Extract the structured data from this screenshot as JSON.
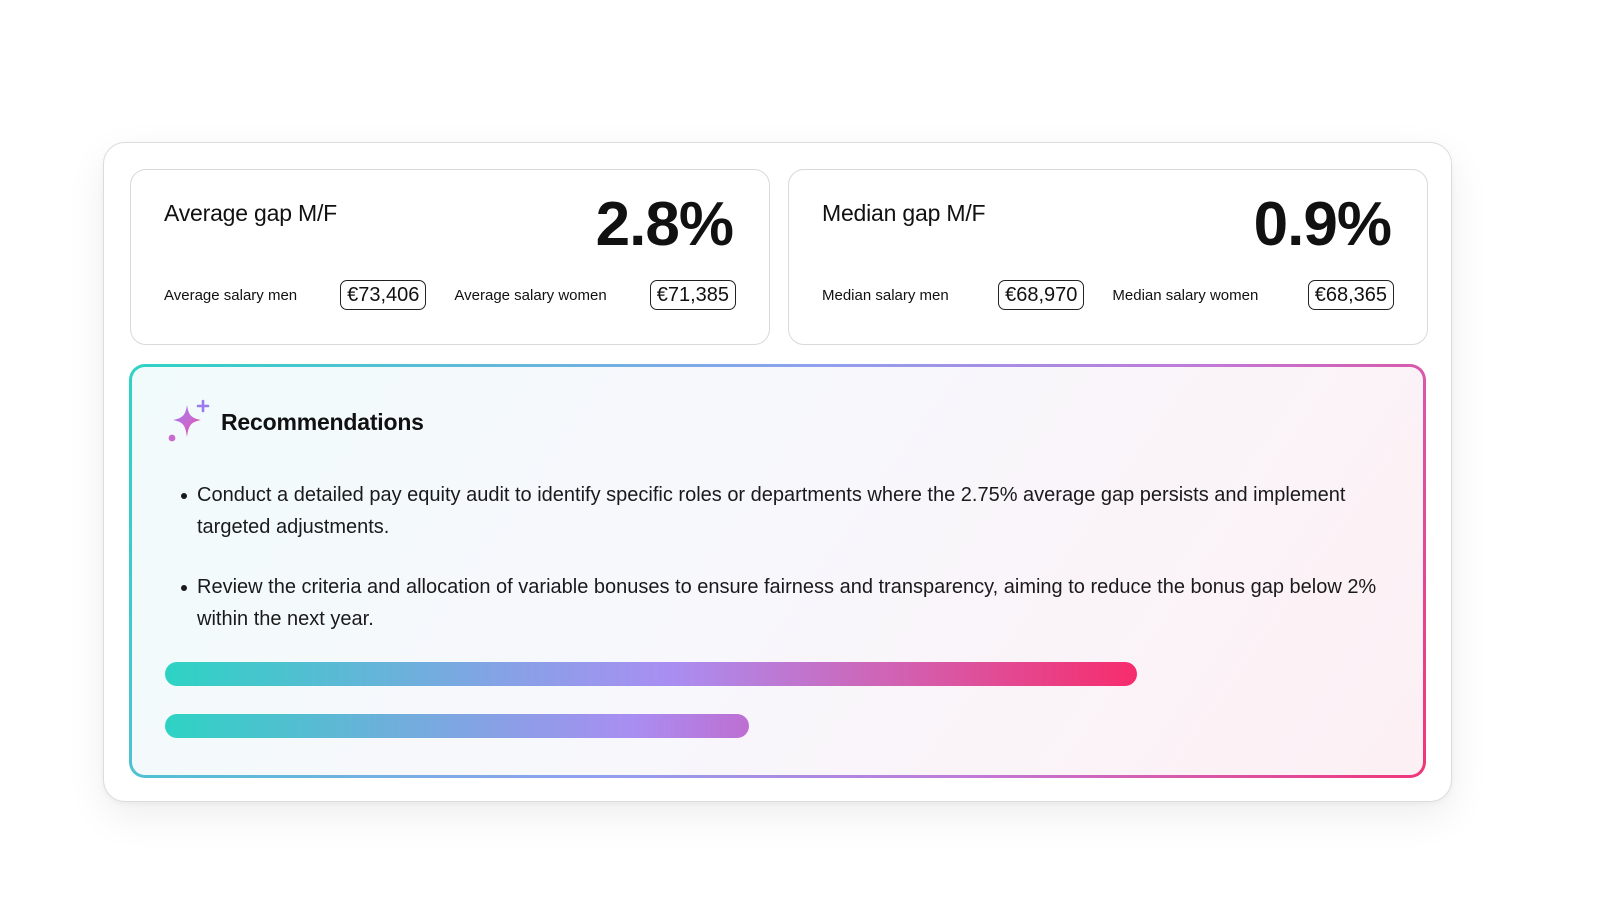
{
  "average_card": {
    "title": "Average gap M/F",
    "value": "2.8%",
    "men_label": "Average salary men",
    "men_value": "€73,406",
    "women_label": "Average salary women",
    "women_value": "€71,385"
  },
  "median_card": {
    "title": "Median gap M/F",
    "value": "0.9%",
    "men_label": "Median salary men",
    "men_value": "€68,970",
    "women_label": "Median salary women",
    "women_value": "€68,365"
  },
  "recommendations": {
    "icon": "sparkle-icon",
    "title": "Recommendations",
    "items": [
      "Conduct a detailed pay equity audit to identify specific roles or departments where the 2.75% average gap persists and implement targeted adjustments.",
      "Review the criteria and allocation of variable bonuses to ensure fairness and transparency, aiming to reduce the bonus gap below 2% within the next year."
    ],
    "progress_bars": [
      {
        "fraction": 0.79
      },
      {
        "fraction": 0.475
      }
    ]
  },
  "colors": {
    "teal": "#2dd3c3",
    "purple": "#a98ef2",
    "pink": "#f72c6c"
  }
}
